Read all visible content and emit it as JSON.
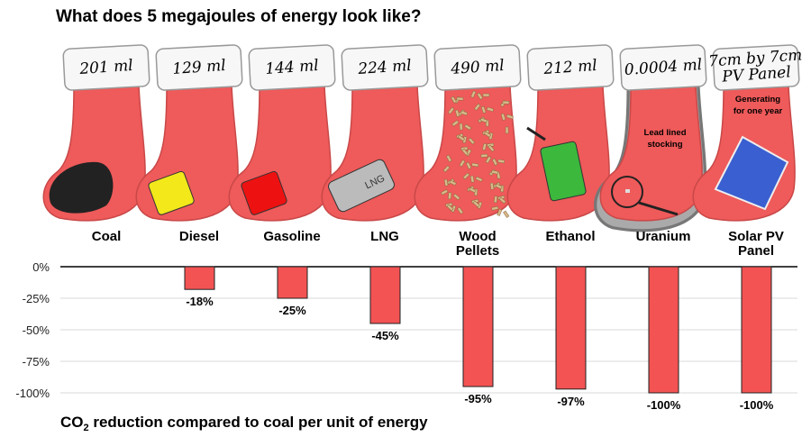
{
  "chart_data": {
    "type": "bar",
    "title": "What does 5 megajoules of energy look like?",
    "categories": [
      "Coal",
      "Diesel",
      "Gasoline",
      "LNG",
      "Wood Pellets",
      "Ethanol",
      "Uranium",
      "Solar PV Panel"
    ],
    "category_lines": [
      [
        "Coal"
      ],
      [
        "Diesel"
      ],
      [
        "Gasoline"
      ],
      [
        "LNG"
      ],
      [
        "Wood",
        "Pellets"
      ],
      [
        "Ethanol"
      ],
      [
        "Uranium"
      ],
      [
        "Solar PV",
        "Panel"
      ]
    ],
    "volumes": [
      [
        "201 ml"
      ],
      [
        "129 ml"
      ],
      [
        "144 ml"
      ],
      [
        "224 ml"
      ],
      [
        "490 ml"
      ],
      [
        "212 ml"
      ],
      [
        "0.0004 ml"
      ],
      [
        "7cm by 7cm",
        "PV Panel"
      ]
    ],
    "values": [
      0,
      -18,
      -25,
      -45,
      -95,
      -97,
      -100,
      -100
    ],
    "data_labels": [
      "",
      "-18%",
      "-25%",
      "-45%",
      "-95%",
      "-97%",
      "-100%",
      "-100%"
    ],
    "yticks": [
      0,
      -25,
      -50,
      -75,
      -100
    ],
    "ytick_labels": [
      "0%",
      "-25%",
      "-50%",
      "-75%",
      "-100%"
    ],
    "ylim": [
      -100,
      0
    ],
    "xlabel_main": "CO",
    "xlabel_sub": "2",
    "xlabel_rest": " reduction compared to coal per unit of energy",
    "grid": true,
    "annotations": {
      "uranium": [
        "Lead lined",
        "stocking"
      ],
      "solar": [
        "Generating",
        "for one year"
      ],
      "lng_can": "LNG"
    },
    "colors": {
      "bar": "#f35353",
      "stocking": "#ef5a5a",
      "cuff": "#f7f7f7"
    }
  }
}
